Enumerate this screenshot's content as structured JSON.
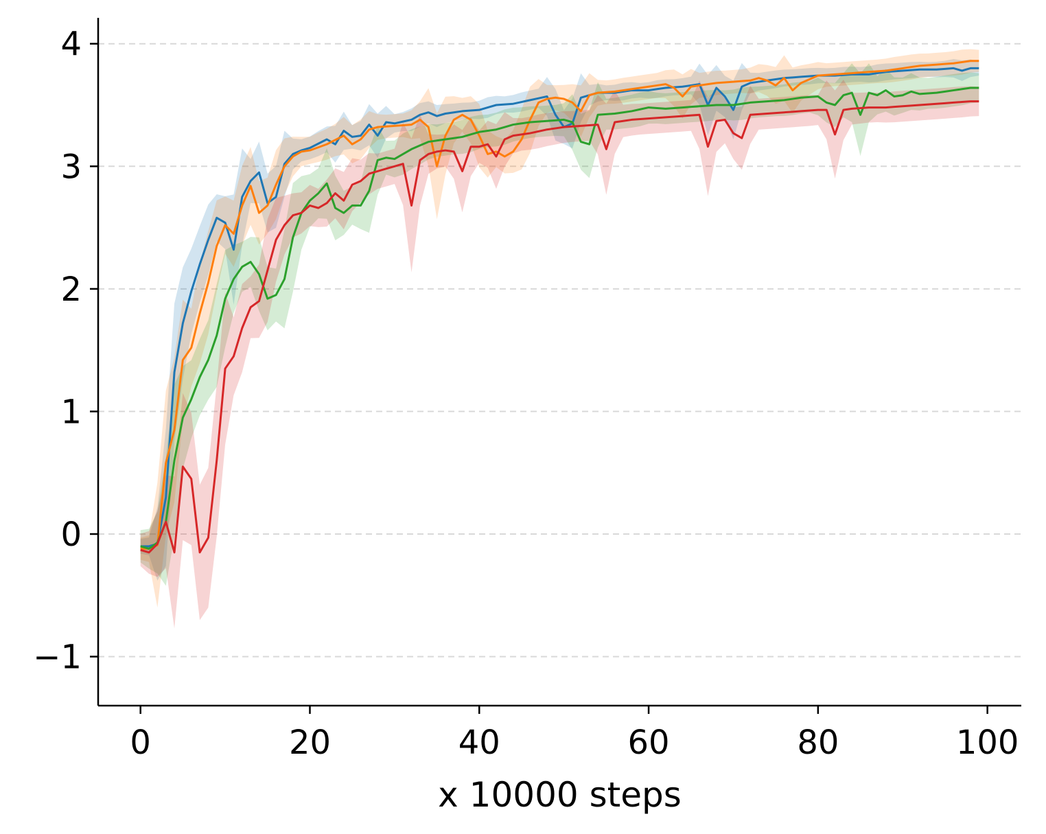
{
  "chart_data": {
    "type": "line",
    "title": "",
    "xlabel": "x 10000 steps",
    "ylabel": "",
    "xlim": [
      -5,
      104
    ],
    "ylim": [
      -1.4,
      4.2
    ],
    "xticks": [
      0,
      20,
      40,
      60,
      80,
      100
    ],
    "xtick_labels": [
      "0",
      "20",
      "40",
      "60",
      "80",
      "100"
    ],
    "yticks": [
      -1,
      0,
      1,
      2,
      3,
      4
    ],
    "ytick_labels": [
      "−1",
      "0",
      "1",
      "2",
      "3",
      "4"
    ],
    "grid": "horizontal dashed",
    "legend": "none",
    "colors": {
      "blue": "#1f77b4",
      "orange": "#ff7f0e",
      "green": "#2ca02c",
      "red": "#d62728",
      "grid": "#d9d9d9"
    },
    "series": [
      {
        "color": "#1f77b4",
        "keypoints": [
          [
            0,
            -0.1
          ],
          [
            1,
            -0.1
          ],
          [
            2,
            -0.08
          ],
          [
            3,
            0.3
          ],
          [
            4,
            1.32
          ],
          [
            5,
            1.72
          ],
          [
            6,
            1.98
          ],
          [
            7,
            2.2
          ],
          [
            8,
            2.4
          ],
          [
            9,
            2.58
          ],
          [
            10,
            2.54
          ],
          [
            11,
            2.32
          ],
          [
            12,
            2.75
          ],
          [
            13,
            2.88
          ],
          [
            14,
            2.95
          ],
          [
            15,
            2.7
          ],
          [
            16,
            2.75
          ],
          [
            17,
            3.02
          ],
          [
            18,
            3.1
          ],
          [
            19,
            3.13
          ],
          [
            20,
            3.15
          ],
          [
            22,
            3.22
          ],
          [
            23,
            3.18
          ],
          [
            24,
            3.29
          ],
          [
            25,
            3.24
          ],
          [
            26,
            3.25
          ],
          [
            27,
            3.34
          ],
          [
            28,
            3.25
          ],
          [
            29,
            3.36
          ],
          [
            30,
            3.35
          ],
          [
            32,
            3.38
          ],
          [
            33,
            3.42
          ],
          [
            34,
            3.44
          ],
          [
            35,
            3.41
          ],
          [
            36,
            3.43
          ],
          [
            38,
            3.45
          ],
          [
            40,
            3.46
          ],
          [
            42,
            3.5
          ],
          [
            44,
            3.51
          ],
          [
            46,
            3.54
          ],
          [
            48,
            3.57
          ],
          [
            49,
            3.42
          ],
          [
            50,
            3.32
          ],
          [
            51,
            3.35
          ],
          [
            52,
            3.56
          ],
          [
            54,
            3.6
          ],
          [
            56,
            3.6
          ],
          [
            58,
            3.62
          ],
          [
            60,
            3.62
          ],
          [
            62,
            3.64
          ],
          [
            64,
            3.65
          ],
          [
            66,
            3.67
          ],
          [
            67,
            3.5
          ],
          [
            68,
            3.64
          ],
          [
            69,
            3.57
          ],
          [
            70,
            3.46
          ],
          [
            71,
            3.65
          ],
          [
            72,
            3.68
          ],
          [
            74,
            3.7
          ],
          [
            76,
            3.72
          ],
          [
            78,
            3.73
          ],
          [
            80,
            3.74
          ],
          [
            82,
            3.74
          ],
          [
            84,
            3.75
          ],
          [
            86,
            3.75
          ],
          [
            88,
            3.77
          ],
          [
            90,
            3.78
          ],
          [
            92,
            3.79
          ],
          [
            94,
            3.79
          ],
          [
            96,
            3.8
          ],
          [
            97,
            3.78
          ],
          [
            98,
            3.8
          ],
          [
            99,
            3.8
          ]
        ],
        "band": 0.06
      },
      {
        "color": "#ff7f0e",
        "keypoints": [
          [
            0,
            -0.12
          ],
          [
            1,
            -0.12
          ],
          [
            2,
            -0.09
          ],
          [
            3,
            0.58
          ],
          [
            4,
            0.85
          ],
          [
            5,
            1.42
          ],
          [
            6,
            1.52
          ],
          [
            7,
            1.8
          ],
          [
            8,
            2.05
          ],
          [
            9,
            2.35
          ],
          [
            10,
            2.52
          ],
          [
            11,
            2.45
          ],
          [
            12,
            2.68
          ],
          [
            13,
            2.84
          ],
          [
            14,
            2.62
          ],
          [
            15,
            2.68
          ],
          [
            16,
            2.85
          ],
          [
            17,
            3.0
          ],
          [
            18,
            3.08
          ],
          [
            19,
            3.12
          ],
          [
            20,
            3.13
          ],
          [
            22,
            3.18
          ],
          [
            24,
            3.25
          ],
          [
            25,
            3.18
          ],
          [
            26,
            3.22
          ],
          [
            27,
            3.3
          ],
          [
            28,
            3.32
          ],
          [
            30,
            3.33
          ],
          [
            32,
            3.34
          ],
          [
            33,
            3.38
          ],
          [
            34,
            3.32
          ],
          [
            35,
            3.0
          ],
          [
            36,
            3.25
          ],
          [
            37,
            3.38
          ],
          [
            38,
            3.42
          ],
          [
            39,
            3.38
          ],
          [
            40,
            3.25
          ],
          [
            41,
            3.1
          ],
          [
            42,
            3.12
          ],
          [
            43,
            3.08
          ],
          [
            44,
            3.12
          ],
          [
            45,
            3.22
          ],
          [
            46,
            3.38
          ],
          [
            47,
            3.52
          ],
          [
            48,
            3.55
          ],
          [
            49,
            3.56
          ],
          [
            50,
            3.55
          ],
          [
            51,
            3.52
          ],
          [
            52,
            3.45
          ],
          [
            53,
            3.58
          ],
          [
            54,
            3.6
          ],
          [
            56,
            3.61
          ],
          [
            58,
            3.63
          ],
          [
            60,
            3.65
          ],
          [
            62,
            3.67
          ],
          [
            63,
            3.64
          ],
          [
            64,
            3.57
          ],
          [
            65,
            3.65
          ],
          [
            66,
            3.66
          ],
          [
            68,
            3.68
          ],
          [
            70,
            3.69
          ],
          [
            72,
            3.7
          ],
          [
            73,
            3.72
          ],
          [
            74,
            3.7
          ],
          [
            75,
            3.66
          ],
          [
            76,
            3.72
          ],
          [
            77,
            3.62
          ],
          [
            78,
            3.68
          ],
          [
            80,
            3.74
          ],
          [
            82,
            3.75
          ],
          [
            84,
            3.76
          ],
          [
            86,
            3.77
          ],
          [
            88,
            3.78
          ],
          [
            90,
            3.8
          ],
          [
            92,
            3.82
          ],
          [
            94,
            3.83
          ],
          [
            96,
            3.84
          ],
          [
            98,
            3.86
          ],
          [
            99,
            3.86
          ]
        ],
        "band": 0.09
      },
      {
        "color": "#2ca02c",
        "keypoints": [
          [
            0,
            -0.1
          ],
          [
            1,
            -0.12
          ],
          [
            2,
            -0.07
          ],
          [
            3,
            0.1
          ],
          [
            4,
            0.6
          ],
          [
            5,
            0.95
          ],
          [
            6,
            1.1
          ],
          [
            7,
            1.28
          ],
          [
            8,
            1.42
          ],
          [
            9,
            1.62
          ],
          [
            10,
            1.92
          ],
          [
            11,
            2.08
          ],
          [
            12,
            2.18
          ],
          [
            13,
            2.22
          ],
          [
            14,
            2.12
          ],
          [
            15,
            1.92
          ],
          [
            16,
            1.95
          ],
          [
            17,
            2.08
          ],
          [
            18,
            2.42
          ],
          [
            19,
            2.62
          ],
          [
            20,
            2.72
          ],
          [
            21,
            2.78
          ],
          [
            22,
            2.86
          ],
          [
            23,
            2.66
          ],
          [
            24,
            2.62
          ],
          [
            25,
            2.68
          ],
          [
            26,
            2.68
          ],
          [
            27,
            2.8
          ],
          [
            28,
            3.05
          ],
          [
            29,
            3.07
          ],
          [
            30,
            3.06
          ],
          [
            32,
            3.14
          ],
          [
            34,
            3.2
          ],
          [
            36,
            3.22
          ],
          [
            38,
            3.24
          ],
          [
            40,
            3.28
          ],
          [
            42,
            3.3
          ],
          [
            44,
            3.34
          ],
          [
            46,
            3.36
          ],
          [
            48,
            3.37
          ],
          [
            50,
            3.38
          ],
          [
            51,
            3.36
          ],
          [
            52,
            3.2
          ],
          [
            53,
            3.18
          ],
          [
            54,
            3.42
          ],
          [
            56,
            3.43
          ],
          [
            58,
            3.45
          ],
          [
            60,
            3.48
          ],
          [
            62,
            3.47
          ],
          [
            64,
            3.48
          ],
          [
            66,
            3.49
          ],
          [
            68,
            3.5
          ],
          [
            70,
            3.5
          ],
          [
            72,
            3.52
          ],
          [
            74,
            3.53
          ],
          [
            76,
            3.54
          ],
          [
            78,
            3.56
          ],
          [
            80,
            3.57
          ],
          [
            81,
            3.52
          ],
          [
            82,
            3.5
          ],
          [
            83,
            3.58
          ],
          [
            84,
            3.6
          ],
          [
            85,
            3.42
          ],
          [
            86,
            3.6
          ],
          [
            87,
            3.58
          ],
          [
            88,
            3.62
          ],
          [
            89,
            3.57
          ],
          [
            90,
            3.58
          ],
          [
            91,
            3.61
          ],
          [
            92,
            3.59
          ],
          [
            94,
            3.6
          ],
          [
            96,
            3.62
          ],
          [
            98,
            3.64
          ],
          [
            99,
            3.64
          ]
        ],
        "band": 0.12
      },
      {
        "color": "#d62728",
        "keypoints": [
          [
            0,
            -0.13
          ],
          [
            1,
            -0.15
          ],
          [
            2,
            -0.08
          ],
          [
            3,
            0.1
          ],
          [
            4,
            -0.15
          ],
          [
            5,
            0.55
          ],
          [
            6,
            0.45
          ],
          [
            7,
            -0.15
          ],
          [
            8,
            -0.03
          ],
          [
            9,
            0.6
          ],
          [
            10,
            1.35
          ],
          [
            11,
            1.45
          ],
          [
            12,
            1.68
          ],
          [
            13,
            1.85
          ],
          [
            14,
            1.9
          ],
          [
            15,
            2.15
          ],
          [
            16,
            2.4
          ],
          [
            17,
            2.52
          ],
          [
            18,
            2.6
          ],
          [
            19,
            2.62
          ],
          [
            20,
            2.68
          ],
          [
            21,
            2.66
          ],
          [
            22,
            2.7
          ],
          [
            23,
            2.78
          ],
          [
            24,
            2.72
          ],
          [
            25,
            2.85
          ],
          [
            26,
            2.88
          ],
          [
            27,
            2.94
          ],
          [
            28,
            2.96
          ],
          [
            30,
            3.0
          ],
          [
            31,
            3.02
          ],
          [
            32,
            2.68
          ],
          [
            33,
            3.05
          ],
          [
            34,
            3.1
          ],
          [
            35,
            3.12
          ],
          [
            36,
            3.13
          ],
          [
            37,
            3.12
          ],
          [
            38,
            2.96
          ],
          [
            39,
            3.16
          ],
          [
            40,
            3.16
          ],
          [
            41,
            3.18
          ],
          [
            42,
            3.08
          ],
          [
            43,
            3.22
          ],
          [
            44,
            3.25
          ],
          [
            46,
            3.27
          ],
          [
            48,
            3.3
          ],
          [
            50,
            3.32
          ],
          [
            52,
            3.33
          ],
          [
            54,
            3.34
          ],
          [
            55,
            3.14
          ],
          [
            56,
            3.36
          ],
          [
            58,
            3.38
          ],
          [
            60,
            3.39
          ],
          [
            62,
            3.4
          ],
          [
            64,
            3.41
          ],
          [
            66,
            3.42
          ],
          [
            67,
            3.16
          ],
          [
            68,
            3.37
          ],
          [
            69,
            3.38
          ],
          [
            70,
            3.27
          ],
          [
            71,
            3.23
          ],
          [
            72,
            3.42
          ],
          [
            74,
            3.43
          ],
          [
            76,
            3.44
          ],
          [
            78,
            3.45
          ],
          [
            80,
            3.46
          ],
          [
            81,
            3.46
          ],
          [
            82,
            3.26
          ],
          [
            83,
            3.46
          ],
          [
            84,
            3.47
          ],
          [
            86,
            3.48
          ],
          [
            88,
            3.48
          ],
          [
            90,
            3.49
          ],
          [
            92,
            3.5
          ],
          [
            94,
            3.51
          ],
          [
            96,
            3.52
          ],
          [
            98,
            3.53
          ],
          [
            99,
            3.53
          ]
        ],
        "band": 0.12
      }
    ]
  }
}
